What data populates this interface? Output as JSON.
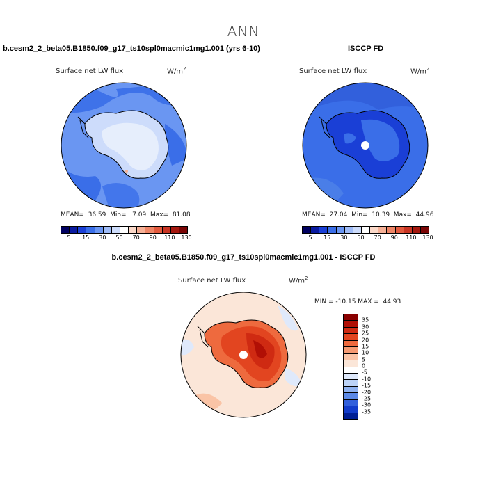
{
  "main_title": "ANN",
  "units_base": "W/m",
  "units_exp": "2",
  "panels": [
    {
      "title": "b.cesm2_2_beta05.B1850.f09_g17_ts10spl0macmic1mg1.001 (yrs 6-10)",
      "field": "Surface net LW flux",
      "stats": "MEAN=  36.59  Min=   7.09  Max=  81.08"
    },
    {
      "title": "ISCCP FD",
      "field": "Surface net LW flux",
      "stats": "MEAN=  27.04  Min=  10.39  Max=  44.96"
    },
    {
      "title": "b.cesm2_2_beta05.B1850.f09_g17_ts10spl0macmic1mg1.001 - ISCCP FD",
      "field": "Surface net LW flux",
      "stats": "MIN = -10.15 MAX =  44.93"
    }
  ],
  "colorbar_levels": [
    "5",
    "15",
    "30",
    "50",
    "70",
    "90",
    "110",
    "130"
  ],
  "colorbar_colors": [
    "#000060",
    "#0a1aa0",
    "#1a3fd6",
    "#3a6ee8",
    "#6a96f2",
    "#9fbcf8",
    "#cddcfb",
    "#ffffff",
    "#fbd9c9",
    "#f6b197",
    "#ee8566",
    "#e25a3e",
    "#c93524",
    "#a5180f",
    "#7a0505"
  ],
  "diff_levels": [
    "35",
    "30",
    "25",
    "20",
    "15",
    "10",
    "5",
    "0",
    "-5",
    "-10",
    "-15",
    "-20",
    "-25",
    "-30",
    "-35"
  ],
  "diff_colors": [
    "#8a0000",
    "#b10f05",
    "#cf2a12",
    "#e24520",
    "#ee6a3e",
    "#f59a72",
    "#fac4a6",
    "#fbe6d8",
    "#ffffff",
    "#dfe9fb",
    "#bcd3f7",
    "#8fb2f0",
    "#5c89e6",
    "#3260dc",
    "#123ccb",
    "#001f95"
  ],
  "chart_data": [
    {
      "type": "heatmap",
      "title": "b.cesm2_2_beta05.B1850.f09_g17_ts10spl0macmic1mg1.001 (yrs 6-10)",
      "variable": "Surface net LW flux",
      "units": "W/m2",
      "projection": "south polar stereographic",
      "mean": 36.59,
      "min": 7.09,
      "max": 81.08,
      "colorbar_levels": [
        5,
        15,
        30,
        50,
        70,
        90,
        110,
        130
      ]
    },
    {
      "type": "heatmap",
      "title": "ISCCP FD",
      "variable": "Surface net LW flux",
      "units": "W/m2",
      "projection": "south polar stereographic",
      "mean": 27.04,
      "min": 10.39,
      "max": 44.96,
      "colorbar_levels": [
        5,
        15,
        30,
        50,
        70,
        90,
        110,
        130
      ]
    },
    {
      "type": "heatmap",
      "title": "b.cesm2_2_beta05.B1850.f09_g17_ts10spl0macmic1mg1.001 - ISCCP FD",
      "variable": "Surface net LW flux",
      "units": "W/m2",
      "projection": "south polar stereographic",
      "min": -10.15,
      "max": 44.93,
      "colorbar_levels": [
        35,
        30,
        25,
        20,
        15,
        10,
        5,
        0,
        -5,
        -10,
        -15,
        -20,
        -25,
        -30,
        -35
      ]
    }
  ]
}
